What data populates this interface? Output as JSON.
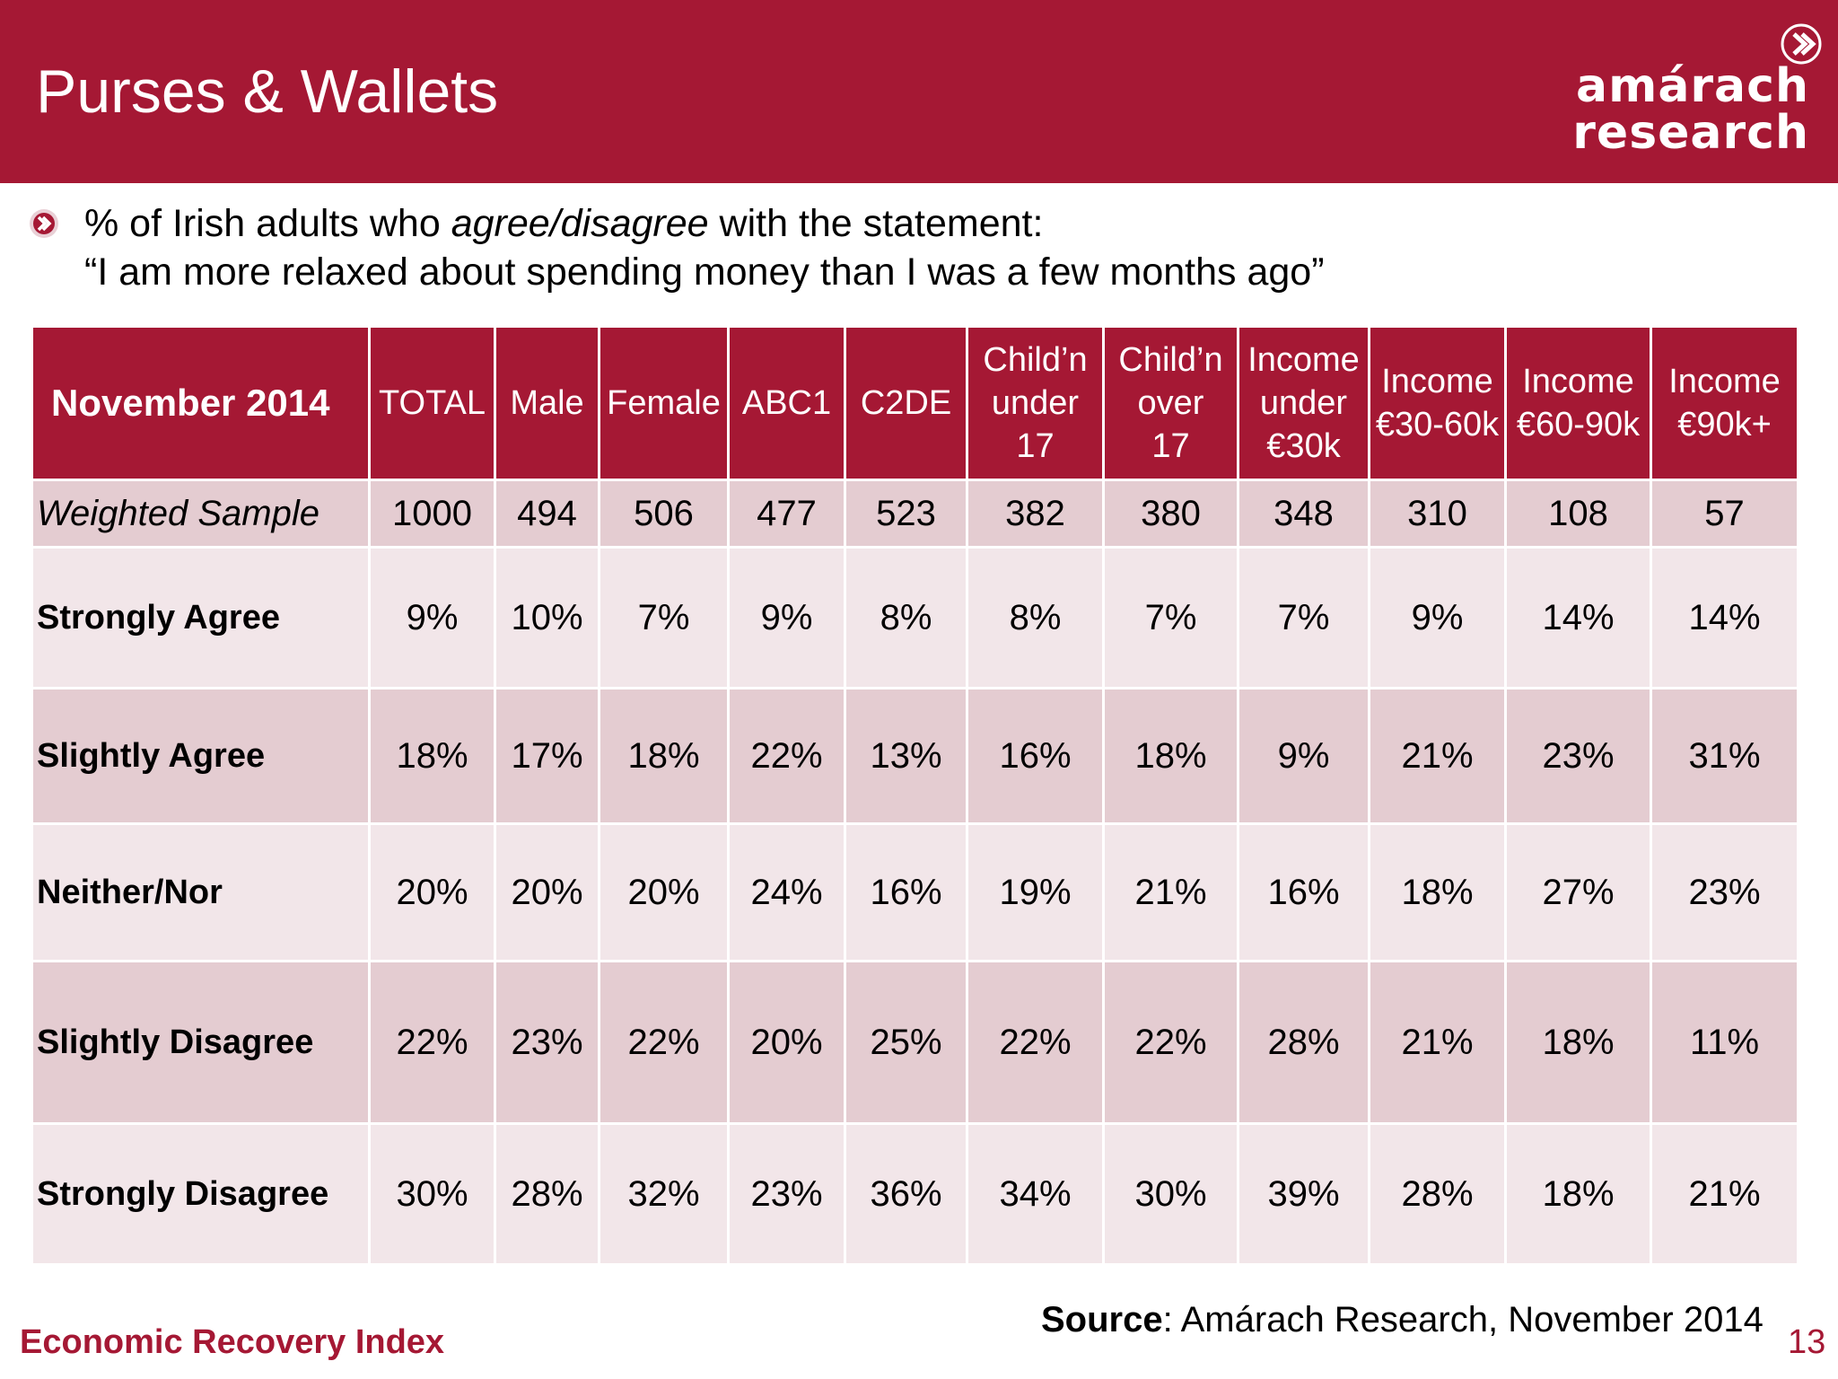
{
  "header": {
    "title": "Purses & Wallets",
    "logo_line1": "amárach",
    "logo_line2": "research",
    "brand_color": "#a51834"
  },
  "subtitle": {
    "line1_prefix": "% of Irish adults who ",
    "line1_emphasis": "agree/disagree",
    "line1_suffix": " with the statement:",
    "line2": "“I am more relaxed about spending money than I was a few months ago”",
    "bullet_icon": "chevron-bullet-icon"
  },
  "table": {
    "corner_label": "November 2014",
    "columns": [
      [
        "TOTAL"
      ],
      [
        "Male"
      ],
      [
        "Female"
      ],
      [
        "ABC1"
      ],
      [
        "C2DE"
      ],
      [
        "Child’n",
        "under",
        "17"
      ],
      [
        "Child’n",
        "over",
        "17"
      ],
      [
        "Income",
        "under",
        "€30k"
      ],
      [
        "Income",
        "€30-60k"
      ],
      [
        "Income",
        "€60-90k"
      ],
      [
        "Income",
        "€90k+"
      ]
    ],
    "sample_row": {
      "label": "Weighted Sample",
      "values": [
        "1000",
        "494",
        "506",
        "477",
        "523",
        "382",
        "380",
        "348",
        "310",
        "108",
        "57"
      ]
    },
    "rows": [
      {
        "label": "Strongly Agree",
        "values": [
          "9%",
          "10%",
          "7%",
          "9%",
          "8%",
          "8%",
          "7%",
          "7%",
          "9%",
          "14%",
          "14%"
        ]
      },
      {
        "label": "Slightly Agree",
        "values": [
          "18%",
          "17%",
          "18%",
          "22%",
          "13%",
          "16%",
          "18%",
          "9%",
          "21%",
          "23%",
          "31%"
        ]
      },
      {
        "label": "Neither/Nor",
        "values": [
          "20%",
          "20%",
          "20%",
          "24%",
          "16%",
          "19%",
          "21%",
          "16%",
          "18%",
          "27%",
          "23%"
        ]
      },
      {
        "label": "Slightly Disagree",
        "values": [
          "22%",
          "23%",
          "22%",
          "20%",
          "25%",
          "22%",
          "22%",
          "28%",
          "21%",
          "18%",
          "11%"
        ]
      },
      {
        "label": "Strongly Disagree",
        "values": [
          "30%",
          "28%",
          "32%",
          "23%",
          "36%",
          "34%",
          "30%",
          "39%",
          "28%",
          "18%",
          "21%"
        ]
      }
    ]
  },
  "footer": {
    "left": "Economic Recovery Index",
    "source_label": "Source",
    "source_text": ": Amárach Research, November 2014",
    "page_number": "13"
  }
}
